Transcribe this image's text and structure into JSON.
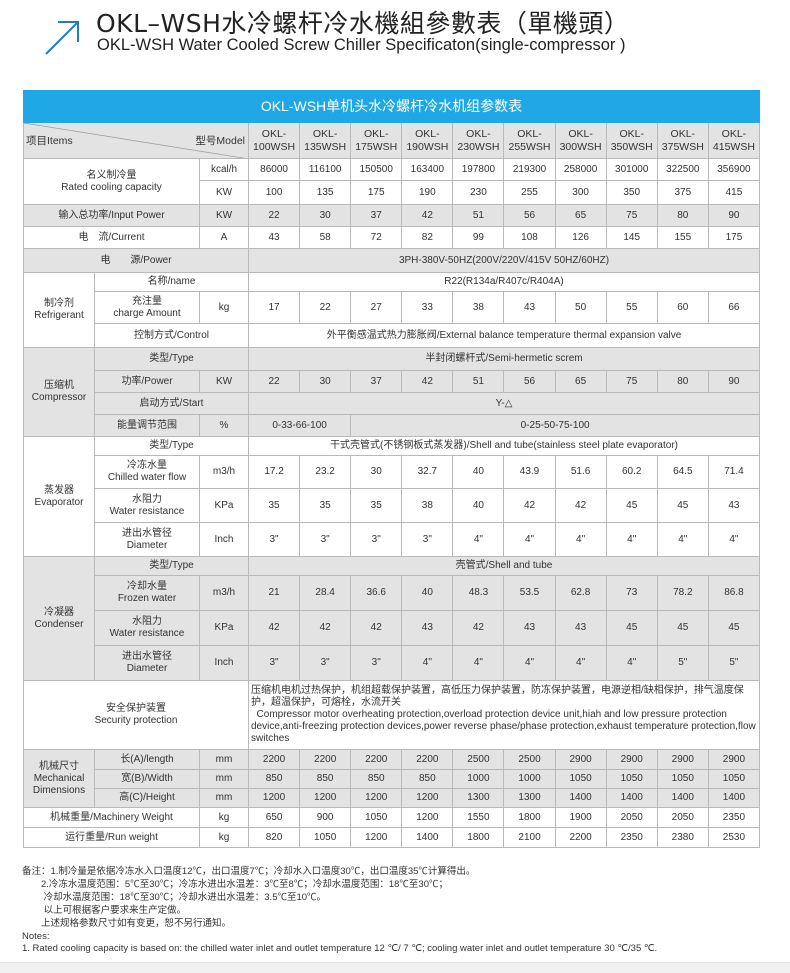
{
  "header": {
    "title_cn": "OKL–WSH水冷螺杆冷水機組參數表（單機頭）",
    "title_en": "OKL-WSH Water Cooled Screw Chiller Specificaton(single-compressor )",
    "accent": "#1e7fc0"
  },
  "table": {
    "title": "OKL-WSH单机头水冷螺杆冷水机组参数表",
    "title_bg": "#20a8e6",
    "items_label": "项目Items",
    "model_label": "型号Model",
    "models": [
      "OKL-100WSH",
      "OKL-135WSH",
      "OKL-175WSH",
      "OKL-190WSH",
      "OKL-230WSH",
      "OKL-255WSH",
      "OKL-300WSH",
      "OKL-350WSH",
      "OKL-375WSH",
      "OKL-415WSH"
    ],
    "cooling": {
      "label_cn": "名义制冷量",
      "label_en": "Rated cooling capacity",
      "rows": [
        {
          "unit": "kcal/h",
          "values": [
            "86000",
            "116100",
            "150500",
            "163400",
            "197800",
            "219300",
            "258000",
            "301000",
            "322500",
            "356900"
          ]
        },
        {
          "unit": "KW",
          "values": [
            "100",
            "135",
            "175",
            "190",
            "230",
            "255",
            "300",
            "350",
            "375",
            "415"
          ]
        }
      ]
    },
    "input_power": {
      "label": "输入总功率/Input Power",
      "unit": "KW",
      "values": [
        "22",
        "30",
        "37",
        "42",
        "51",
        "56",
        "65",
        "75",
        "80",
        "90"
      ]
    },
    "current": {
      "label": "电　流/Current",
      "unit": "A",
      "values": [
        "43",
        "58",
        "72",
        "82",
        "99",
        "108",
        "126",
        "145",
        "155",
        "175"
      ]
    },
    "power": {
      "label": "电　　源/Power",
      "value": "3PH-380V-50HZ(200V/220V/415V   50HZ/60HZ)"
    },
    "refrigerant": {
      "label_cn": "制冷剂",
      "label_en": "Refrigerant",
      "items": [
        {
          "label": "名称/name",
          "value": "R22(R134a/R407c/R404A)"
        },
        {
          "label_cn": "充注量",
          "label_en": "charge Amount",
          "unit": "kg",
          "values": [
            "17",
            "22",
            "27",
            "33",
            "38",
            "43",
            "50",
            "55",
            "60",
            "66"
          ]
        },
        {
          "label": "控制方式/Control",
          "value": "外平衡感温式热力膨胀阀/External balance temperature thermal expansion valve"
        }
      ]
    },
    "compressor": {
      "label_cn": "压缩机",
      "label_en": "Compressor",
      "items": [
        {
          "label": "类型/Type",
          "value": "半封闭螺杆式/Semi-hermetic screm"
        },
        {
          "label": "功率/Power",
          "unit": "KW",
          "values": [
            "22",
            "30",
            "37",
            "42",
            "51",
            "56",
            "65",
            "75",
            "80",
            "90"
          ]
        },
        {
          "label": "启动方式/Start",
          "value": "Y-△"
        },
        {
          "label": "能量调节范围",
          "unit": "%",
          "split": [
            "0-33-66-100",
            "0-25-50-75-100"
          ]
        }
      ]
    },
    "evaporator": {
      "label_cn": "蒸发器",
      "label_en": "Evaporator",
      "items": [
        {
          "label": "类型/Type",
          "value": "干式壳管式(不锈钢板式蒸发器)/Shell and tube(stainless steel plate evaporator)"
        },
        {
          "label_cn": "冷冻水量",
          "label_en": "Chilled water flow",
          "unit": "m3/h",
          "values": [
            "17.2",
            "23.2",
            "30",
            "32.7",
            "40",
            "43.9",
            "51.6",
            "60.2",
            "64.5",
            "71.4"
          ]
        },
        {
          "label_cn": "水阻力",
          "label_en": "Water resistance",
          "unit": "KPa",
          "values": [
            "35",
            "35",
            "35",
            "38",
            "40",
            "42",
            "42",
            "45",
            "45",
            "43"
          ]
        },
        {
          "label_cn": "进出水管径",
          "label_en": "Diameter",
          "unit": "Inch",
          "values": [
            "3\"",
            "3\"",
            "3\"",
            "3\"",
            "4\"",
            "4\"",
            "4\"",
            "4\"",
            "4\"",
            "4\""
          ]
        }
      ]
    },
    "condenser": {
      "label_cn": "冷凝器",
      "label_en": "Condenser",
      "items": [
        {
          "label": "类型/Type",
          "value": "壳管式/Shell and tube"
        },
        {
          "label_cn": "冷却水量",
          "label_en": "Frozen water",
          "unit": "m3/h",
          "values": [
            "21",
            "28.4",
            "36.6",
            "40",
            "48.3",
            "53.5",
            "62.8",
            "73",
            "78.2",
            "86.8"
          ]
        },
        {
          "label_cn": "水阻力",
          "label_en": "Water resistance",
          "unit": "KPa",
          "values": [
            "42",
            "42",
            "42",
            "43",
            "42",
            "43",
            "43",
            "45",
            "45",
            "45"
          ]
        },
        {
          "label_cn": "进出水管径",
          "label_en": "Diameter",
          "unit": "Inch",
          "values": [
            "3\"",
            "3\"",
            "3\"",
            "4\"",
            "4\"",
            "4\"",
            "4\"",
            "4\"",
            "5\"",
            "5\""
          ]
        }
      ]
    },
    "security": {
      "label_cn": "安全保护装置",
      "label_en": "Security protection",
      "value_cn": "压缩机电机过热保护，机组超载保护装置，高低压力保护装置，防冻保护装置，电源逆相/缺相保护，排气温度保护，超温保护，可熔栓，水流开关",
      "value_en": "Compressor motor overheating protection,overload protection device unit,hiah and low pressure protection device,anti-freezing protection devices,power reverse phase/phase protection,exhaust temperature protection,flow switches"
    },
    "mechanical": {
      "label_cn": "机械尺寸",
      "label_en": "Mechanical Dimensions",
      "items": [
        {
          "label": "长(A)/length",
          "unit": "mm",
          "values": [
            "2200",
            "2200",
            "2200",
            "2200",
            "2500",
            "2500",
            "2900",
            "2900",
            "2900",
            "2900"
          ]
        },
        {
          "label": "宽(B)/Width",
          "unit": "mm",
          "values": [
            "850",
            "850",
            "850",
            "850",
            "1000",
            "1000",
            "1050",
            "1050",
            "1050",
            "1050"
          ]
        },
        {
          "label": "高(C)/Height",
          "unit": "mm",
          "values": [
            "1200",
            "1200",
            "1200",
            "1200",
            "1300",
            "1300",
            "1400",
            "1400",
            "1400",
            "1400"
          ]
        }
      ]
    },
    "machinery_weight": {
      "label": "机械重量/Machinery Weight",
      "unit": "kg",
      "values": [
        "650",
        "900",
        "1050",
        "1200",
        "1550",
        "1800",
        "1900",
        "2050",
        "2050",
        "2350"
      ]
    },
    "run_weight": {
      "label": "运行重量/Run weight",
      "unit": "kg",
      "values": [
        "820",
        "1050",
        "1200",
        "1400",
        "1800",
        "2100",
        "2200",
        "2350",
        "2380",
        "2530"
      ]
    }
  },
  "notes": [
    "备注：1.制冷量是依据冷冻水入口温度12℃，出口温度7℃；冷却水入口温度30℃，出口温度35℃计算得出。",
    "　　2.冷冻水温度范围：5℃至30℃；冷冻水进出水温差：3℃至8℃；冷却水温度范围：18℃至30℃；",
    "　　 冷却水温度范围：18℃至30℃；冷却水进出水温差：3.5℃至10℃。",
    "　　 以上可根据客户要求来生产定做。",
    "　　上述规格参数尺寸如有变更，恕不另行通知。",
    "Notes:",
    "1. Rated cooling capacity is based on: the chilled water inlet and outlet temperature 12 ℃/ 7 ℃; cooling water inlet and outlet temperature 30 ℃/35 ℃."
  ]
}
